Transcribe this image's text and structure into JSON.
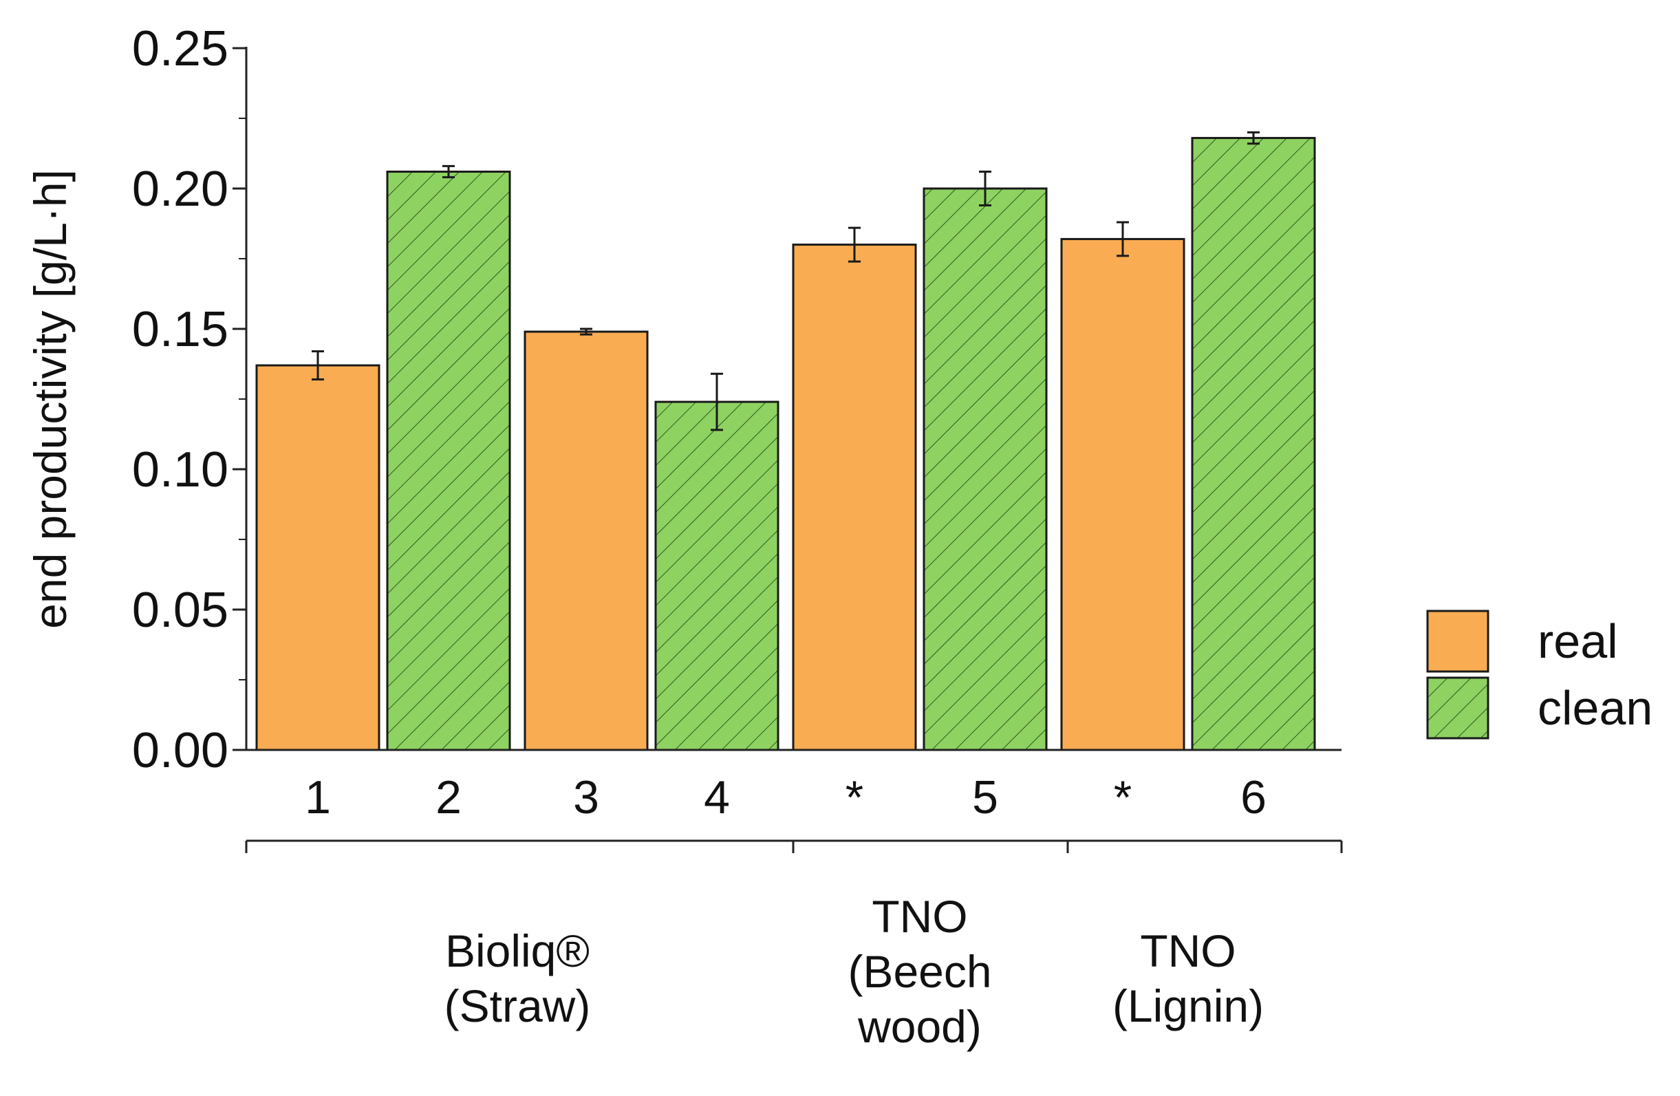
{
  "chart_data": {
    "type": "bar",
    "title": "",
    "xlabel": "",
    "ylabel": "end productivity [g/L·h]",
    "ylim": [
      0,
      0.25
    ],
    "yticks": [
      "0.00",
      "0.05",
      "0.10",
      "0.15",
      "0.20",
      "0.25"
    ],
    "grid": false,
    "colors": {
      "real": "#FAAC52",
      "clean": "#8ED262",
      "hatch": "#2e5a1c"
    },
    "legend_position": "right",
    "legend": [
      "real",
      "clean"
    ],
    "bars": [
      {
        "label": "1",
        "series": "real",
        "value": 0.137,
        "error": 0.005
      },
      {
        "label": "2",
        "series": "clean",
        "value": 0.206,
        "error": 0.002
      },
      {
        "label": "3",
        "series": "real",
        "value": 0.149,
        "error": 0.001
      },
      {
        "label": "4",
        "series": "clean",
        "value": 0.124,
        "error": 0.01
      },
      {
        "label": "*",
        "series": "real",
        "value": 0.18,
        "error": 0.006
      },
      {
        "label": "5",
        "series": "clean",
        "value": 0.2,
        "error": 0.006
      },
      {
        "label": "*",
        "series": "real",
        "value": 0.182,
        "error": 0.006
      },
      {
        "label": "6",
        "series": "clean",
        "value": 0.218,
        "error": 0.002
      }
    ],
    "groups": [
      {
        "lines": [
          "Bioliq®",
          "(Straw)"
        ],
        "bars": [
          0,
          3
        ]
      },
      {
        "lines": [
          "TNO",
          "(Beech",
          "wood)"
        ],
        "bars": [
          4,
          5
        ]
      },
      {
        "lines": [
          "TNO",
          "(Lignin)"
        ],
        "bars": [
          6,
          7
        ]
      }
    ]
  }
}
